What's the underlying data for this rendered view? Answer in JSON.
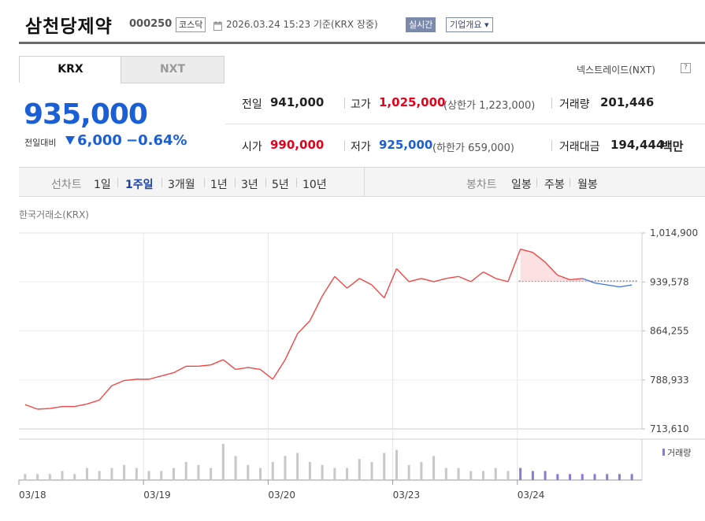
{
  "header": {
    "company_name": "삼천당제약",
    "stock_code": "000250",
    "market": "코스닥",
    "date_text": "2026.03.24 15:23  기준(KRX 장중)",
    "realtime_label": "실시간",
    "company_overview_label": "기업개요 ▾"
  },
  "tabs": [
    {
      "label": "KRX",
      "active": true
    },
    {
      "label": "NXT",
      "active": false
    }
  ],
  "nxt_link_label": "넥스트레이드(NXT)",
  "nxt_link_icon_text": "?",
  "price": {
    "current": "935,000",
    "change_label": "전일대비",
    "change_amount": "6,000",
    "change_rate": "−0.64%",
    "direction": "down"
  },
  "stats": {
    "prev_close_label": "전일",
    "prev_close": "941,000",
    "high_label": "고가",
    "high": "1,025,000",
    "upper_limit_text": "(상한가 1,223,000)",
    "volume_label": "거래량",
    "volume": "201,446",
    "open_label": "시가",
    "open": "990,000",
    "low_label": "저가",
    "low": "925,000",
    "lower_limit_text": "(하한가 659,000)",
    "trade_value_label": "거래대금",
    "trade_value": "194,444",
    "trade_value_unit": "백만"
  },
  "period_bar": {
    "line_label": "선차트",
    "line_items": [
      "1일",
      "1주일",
      "3개월",
      "1년",
      "3년",
      "5년",
      "10년"
    ],
    "active_item": "1주일",
    "candle_label": "봉차트",
    "candle_items": [
      "일봉",
      "주봉",
      "월봉"
    ]
  },
  "exchange_caption": "한국거래소(KRX)",
  "colors": {
    "up": "#e4001b",
    "down": "#1a5fd6",
    "line_up": "#f04747",
    "line_down": "#4a7fd9",
    "fill_up": "#fbd9dc",
    "volume_bar": "#c8c8c8",
    "volume_bar_today": "#8a7ad4"
  },
  "chart_data": {
    "type": "line",
    "title": "",
    "xlabel": "",
    "ylabel": "",
    "y_ticks": [
      "1,014,900",
      "939,578",
      "864,255",
      "788,933",
      "713,610"
    ],
    "ylim": [
      713610,
      1014900
    ],
    "x_ticks": [
      "03/18",
      "03/19",
      "03/20",
      "03/23",
      "03/24"
    ],
    "reference_price": 941000,
    "volume_legend": "거래량",
    "series": [
      {
        "x": [
          "03/18",
          "03/18",
          "03/18",
          "03/18",
          "03/18",
          "03/18",
          "03/18",
          "03/18",
          "03/18",
          "03/18",
          "03/19",
          "03/19",
          "03/19",
          "03/19",
          "03/19",
          "03/19",
          "03/19",
          "03/19",
          "03/19",
          "03/19",
          "03/20",
          "03/20",
          "03/20",
          "03/20",
          "03/20",
          "03/20",
          "03/20",
          "03/20",
          "03/20",
          "03/20",
          "03/23",
          "03/23",
          "03/23",
          "03/23",
          "03/23",
          "03/23",
          "03/23",
          "03/23",
          "03/23",
          "03/23",
          "03/24",
          "03/24",
          "03/24",
          "03/24",
          "03/24",
          "03/24",
          "03/24",
          "03/24",
          "03/24",
          "03/24"
        ],
        "values": [
          751000,
          744000,
          745000,
          748000,
          748000,
          752000,
          758000,
          780000,
          788000,
          790000,
          790000,
          795000,
          800000,
          810000,
          810000,
          812000,
          820000,
          805000,
          808000,
          805000,
          790000,
          820000,
          860000,
          880000,
          918000,
          948000,
          930000,
          945000,
          935000,
          915000,
          960000,
          940000,
          945000,
          940000,
          945000,
          948000,
          940000,
          955000,
          945000,
          940000,
          990000,
          985000,
          970000,
          950000,
          943000,
          945000,
          938000,
          935000,
          932000,
          935000
        ]
      }
    ],
    "volume_series": [
      2,
      2,
      2,
      3,
      2,
      4,
      3,
      4,
      5,
      4,
      3,
      3,
      4,
      6,
      5,
      4,
      12,
      8,
      5,
      4,
      6,
      8,
      9,
      6,
      5,
      4,
      4,
      7,
      6,
      9,
      10,
      5,
      6,
      8,
      4,
      4,
      3,
      3,
      4,
      3,
      4,
      3,
      3,
      2,
      2,
      2,
      2,
      2,
      2,
      2
    ]
  }
}
